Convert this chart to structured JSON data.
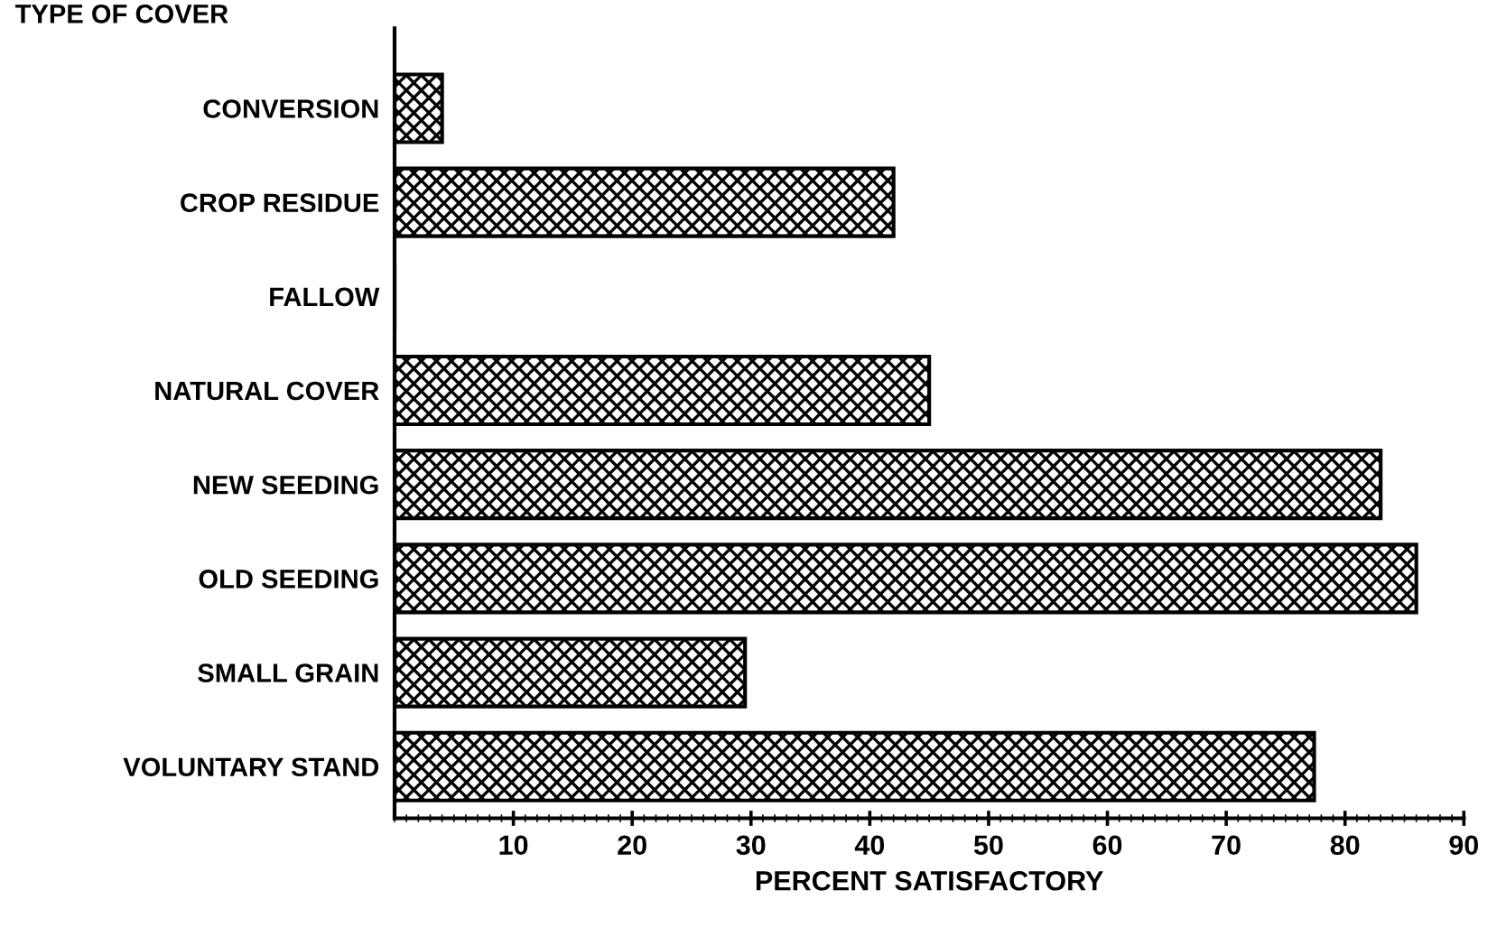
{
  "chart_data": {
    "type": "bar",
    "orientation": "horizontal",
    "ylabel": "TYPE OF COVER",
    "xlabel": "PERCENT SATISFACTORY",
    "categories": [
      "CONVERSION",
      "CROP RESIDUE",
      "FALLOW",
      "NATURAL COVER",
      "NEW SEEDING",
      "OLD SEEDING",
      "SMALL GRAIN",
      "VOLUNTARY STAND"
    ],
    "values": [
      4,
      42,
      0,
      45,
      83,
      86,
      29.5,
      77.4
    ],
    "color": "#000000",
    "xlim": [
      0,
      90
    ],
    "xticks": [
      10,
      20,
      30,
      40,
      50,
      60,
      70,
      80,
      90
    ],
    "grid": false,
    "legend": false
  }
}
